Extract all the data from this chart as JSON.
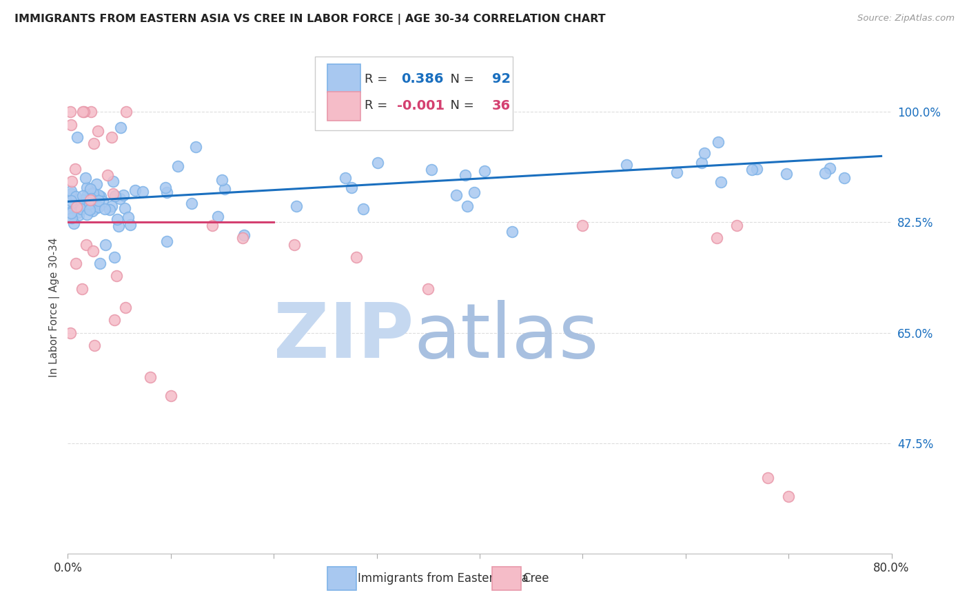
{
  "title": "IMMIGRANTS FROM EASTERN ASIA VS CREE IN LABOR FORCE | AGE 30-34 CORRELATION CHART",
  "source": "Source: ZipAtlas.com",
  "ylabel": "In Labor Force | Age 30-34",
  "xlim": [
    0.0,
    0.8
  ],
  "ylim": [
    0.3,
    1.08
  ],
  "xticks": [
    0.0,
    0.1,
    0.2,
    0.3,
    0.4,
    0.5,
    0.6,
    0.7,
    0.8
  ],
  "xticklabels": [
    "0.0%",
    "",
    "",
    "",
    "",
    "",
    "",
    "",
    "80.0%"
  ],
  "yticks_right": [
    0.475,
    0.65,
    0.825,
    1.0
  ],
  "ytick_labels_right": [
    "47.5%",
    "65.0%",
    "82.5%",
    "100.0%"
  ],
  "blue_color": "#A8C8F0",
  "blue_edge_color": "#7EB3E8",
  "pink_color": "#F5BCC8",
  "pink_edge_color": "#E898AA",
  "trend_blue": "#1A6FBF",
  "trend_pink": "#D44070",
  "legend_R_blue": "0.386",
  "legend_N_blue": "92",
  "legend_R_pink": "-0.001",
  "legend_N_pink": "36",
  "blue_color_text": "#1A6FBF",
  "pink_color_text": "#D44070",
  "background_color": "#FFFFFF",
  "grid_color": "#DDDDDD",
  "title_color": "#222222",
  "axis_label_color": "#444444",
  "right_tick_color": "#1A6FBF",
  "watermark_zip_color": "#C5D8F0",
  "watermark_atlas_color": "#A8C0E0"
}
